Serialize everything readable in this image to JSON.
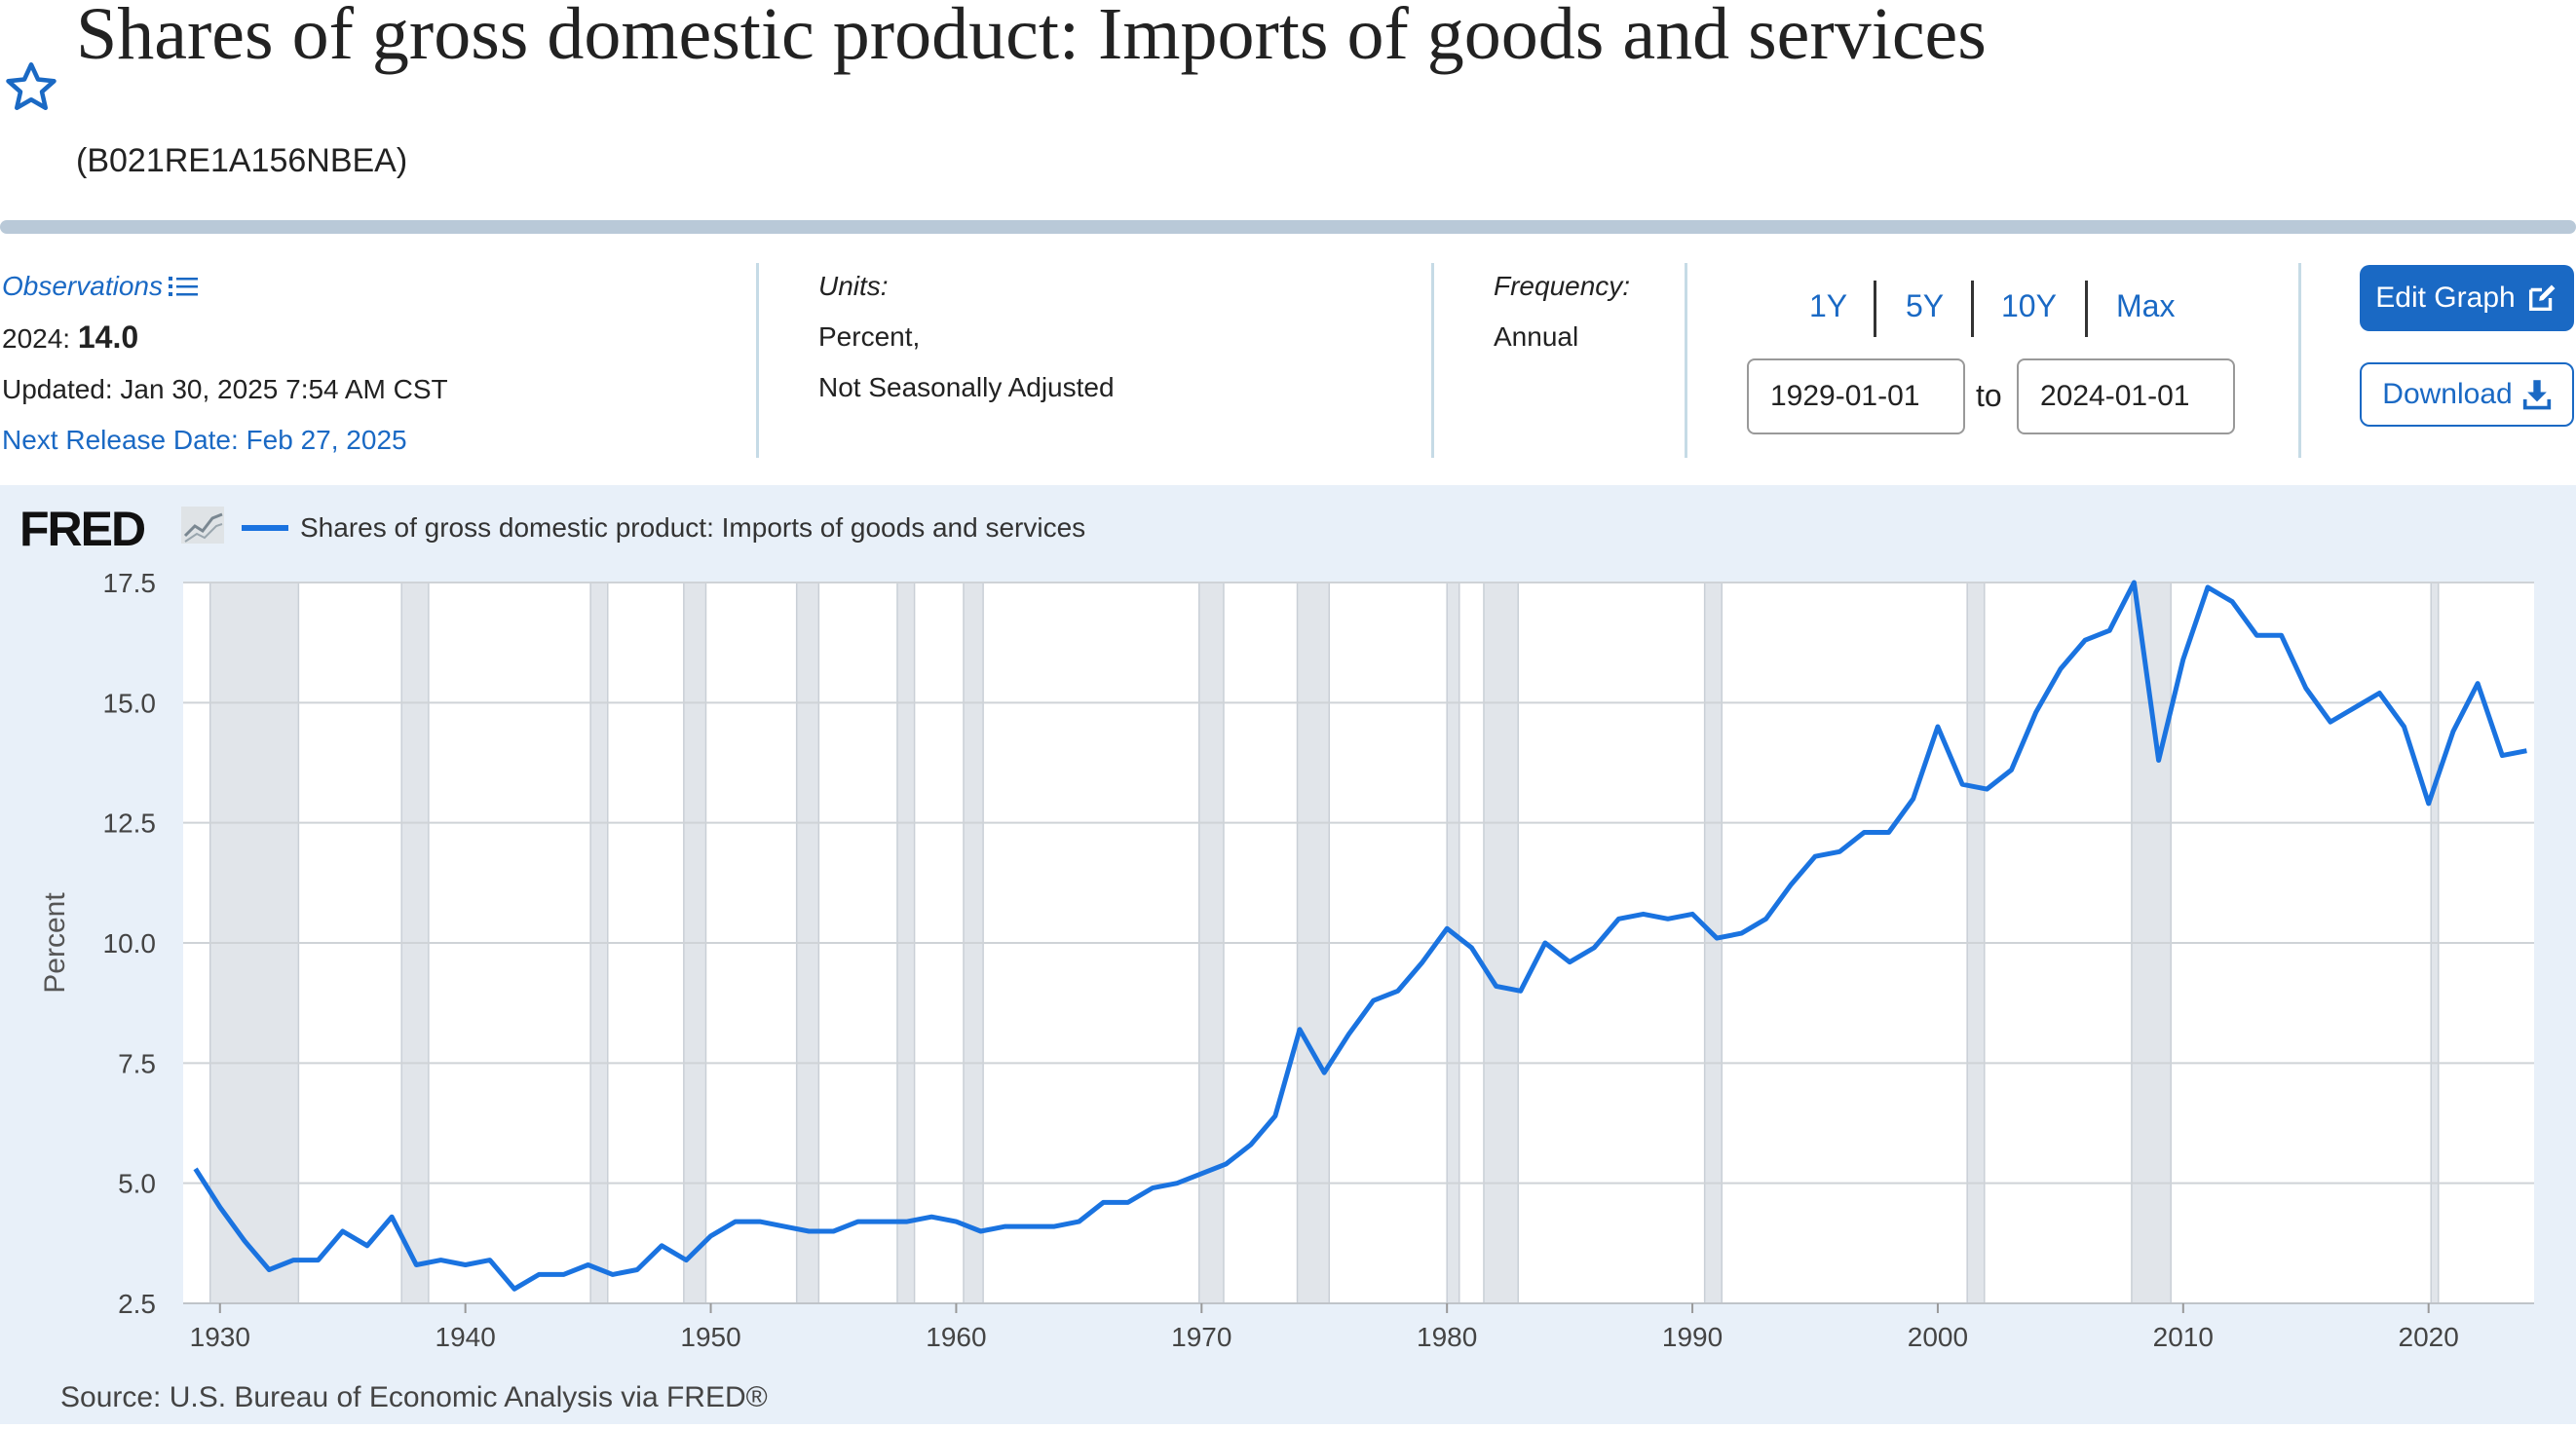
{
  "header": {
    "title": "Shares of gross domestic product: Imports of goods and services",
    "series_id": "(B021RE1A156NBEA)"
  },
  "observations": {
    "label": "Observations",
    "latest_date": "2024:",
    "latest_value": "14.0",
    "updated": "Updated: Jan 30, 2025 7:54 AM CST",
    "next_release": "Next Release Date: Feb 27, 2025"
  },
  "units": {
    "label": "Units:",
    "line1": "Percent,",
    "line2": "Not Seasonally Adjusted"
  },
  "frequency": {
    "label": "Frequency:",
    "value": "Annual"
  },
  "range": {
    "buttons": [
      "1Y",
      "5Y",
      "10Y",
      "Max"
    ],
    "start": "1929-01-01",
    "to_label": "to",
    "end": "2024-01-01"
  },
  "actions": {
    "edit_label": "Edit Graph",
    "download_label": "Download"
  },
  "colors": {
    "line": "#1a73e0",
    "recession": "#e1e5ea",
    "accent": "#1a69c4"
  },
  "chart_data": {
    "type": "line",
    "title": "Shares of gross domestic product: Imports of goods and services",
    "logo_text": "FRED",
    "legend": "Shares of gross domestic product: Imports of goods and services",
    "ylabel": "Percent",
    "xlabel": "",
    "source": "Source: U.S. Bureau of Economic Analysis via FRED®",
    "xlim": [
      1929,
      2024
    ],
    "ylim": [
      2.5,
      17.5
    ],
    "yticks": [
      2.5,
      5.0,
      7.5,
      10.0,
      12.5,
      15.0,
      17.5
    ],
    "ytick_labels": [
      "2.5",
      "5.0",
      "7.5",
      "10.0",
      "12.5",
      "15.0",
      "17.5"
    ],
    "xticks": [
      1930,
      1940,
      1950,
      1960,
      1970,
      1980,
      1990,
      2000,
      2010,
      2020
    ],
    "xtick_labels": [
      "1930",
      "1940",
      "1950",
      "1960",
      "1970",
      "1980",
      "1990",
      "2000",
      "2010",
      "2020"
    ],
    "recessions": [
      [
        1929.6,
        1933.2
      ],
      [
        1937.4,
        1938.5
      ],
      [
        1945.1,
        1945.8
      ],
      [
        1948.9,
        1949.8
      ],
      [
        1953.5,
        1954.4
      ],
      [
        1957.6,
        1958.3
      ],
      [
        1960.3,
        1961.1
      ],
      [
        1969.9,
        1970.9
      ],
      [
        1973.9,
        1975.2
      ],
      [
        1980.0,
        1980.5
      ],
      [
        1981.5,
        1982.9
      ],
      [
        1990.5,
        1991.2
      ],
      [
        2001.2,
        2001.9
      ],
      [
        2007.9,
        2009.5
      ],
      [
        2020.1,
        2020.4
      ]
    ],
    "x": [
      1929,
      1930,
      1931,
      1932,
      1933,
      1934,
      1935,
      1936,
      1937,
      1938,
      1939,
      1940,
      1941,
      1942,
      1943,
      1944,
      1945,
      1946,
      1947,
      1948,
      1949,
      1950,
      1951,
      1952,
      1953,
      1954,
      1955,
      1956,
      1957,
      1958,
      1959,
      1960,
      1961,
      1962,
      1963,
      1964,
      1965,
      1966,
      1967,
      1968,
      1969,
      1970,
      1971,
      1972,
      1973,
      1974,
      1975,
      1976,
      1977,
      1978,
      1979,
      1980,
      1981,
      1982,
      1983,
      1984,
      1985,
      1986,
      1987,
      1988,
      1989,
      1990,
      1991,
      1992,
      1993,
      1994,
      1995,
      1996,
      1997,
      1998,
      1999,
      2000,
      2001,
      2002,
      2003,
      2004,
      2005,
      2006,
      2007,
      2008,
      2009,
      2010,
      2011,
      2012,
      2013,
      2014,
      2015,
      2016,
      2017,
      2018,
      2019,
      2020,
      2021,
      2022,
      2023,
      2024
    ],
    "values": [
      5.3,
      4.5,
      3.8,
      3.2,
      3.4,
      3.4,
      4.0,
      3.7,
      4.3,
      3.3,
      3.4,
      3.3,
      3.4,
      2.8,
      3.1,
      3.1,
      3.3,
      3.1,
      3.2,
      3.7,
      3.4,
      3.9,
      4.2,
      4.2,
      4.1,
      4.0,
      4.0,
      4.2,
      4.2,
      4.2,
      4.3,
      4.2,
      4.0,
      4.1,
      4.1,
      4.1,
      4.2,
      4.6,
      4.6,
      4.9,
      5.0,
      5.2,
      5.4,
      5.8,
      6.4,
      8.2,
      7.3,
      8.1,
      8.8,
      9.0,
      9.6,
      10.3,
      9.9,
      9.1,
      9.0,
      10.0,
      9.6,
      9.9,
      10.5,
      10.6,
      10.5,
      10.6,
      10.1,
      10.2,
      10.5,
      11.2,
      11.8,
      11.9,
      12.3,
      12.3,
      13.0,
      14.5,
      13.3,
      13.2,
      13.6,
      14.8,
      15.7,
      16.3,
      16.5,
      17.5,
      13.8,
      15.9,
      17.4,
      17.1,
      16.4,
      16.4,
      15.3,
      14.6,
      14.9,
      15.2,
      14.5,
      12.9,
      14.4,
      15.4,
      13.9,
      14.0
    ]
  }
}
